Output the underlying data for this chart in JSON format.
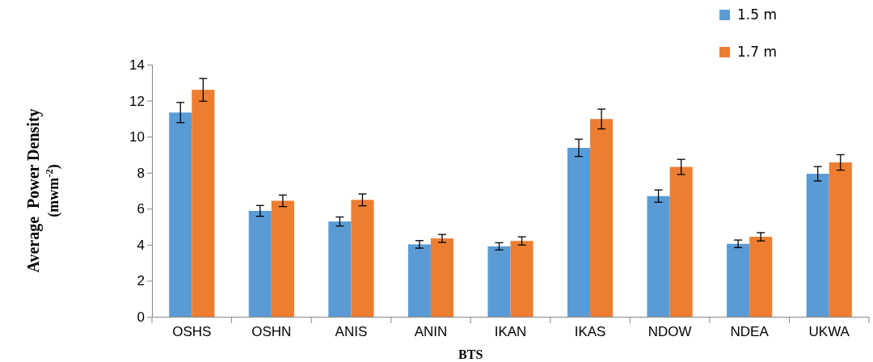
{
  "chart_data": {
    "type": "bar",
    "xlabel": "BTS",
    "ylabel": "Average  Power Density (mwm$^{-2}$)",
    "categories": [
      "OSHS",
      "OSHN",
      "ANIS",
      "ANIN",
      "IKAN",
      "IKAS",
      "NDOW",
      "NDEA",
      "UKWA"
    ],
    "series": [
      {
        "name": "1.5 m",
        "color": "#5b9bd5",
        "values": [
          11.34,
          5.88,
          5.29,
          4.02,
          3.91,
          9.38,
          6.7,
          4.05,
          7.94
        ],
        "errors": [
          0.56,
          0.3,
          0.25,
          0.21,
          0.2,
          0.48,
          0.34,
          0.21,
          0.4
        ]
      },
      {
        "name": "1.7 m",
        "color": "#ed7d31",
        "values": [
          12.6,
          6.44,
          6.49,
          4.35,
          4.21,
          10.98,
          8.32,
          4.44,
          8.57
        ],
        "errors": [
          0.63,
          0.32,
          0.33,
          0.22,
          0.23,
          0.55,
          0.42,
          0.23,
          0.43
        ]
      }
    ],
    "ylim": [
      0,
      14
    ],
    "yticks": [
      0,
      2,
      4,
      6,
      8,
      10,
      12,
      14
    ],
    "grid": false,
    "legend": "top right"
  }
}
